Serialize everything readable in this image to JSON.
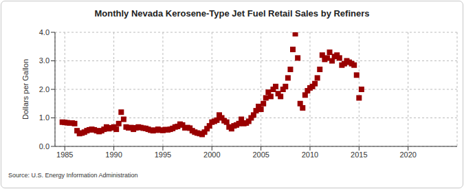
{
  "chart_data": {
    "type": "scatter",
    "title": "Monthly Nevada Kerosene-Type Jet Fuel Retail Sales by Refiners",
    "y_label": "Dollars per Gallon",
    "source": "Source: U.S. Energy Information Administration",
    "series": [
      {
        "name": "Nevada Kerosene-Type Jet Fuel Retail Sales by Refiners",
        "color": "#990000",
        "marker": "square",
        "x": [
          1984.75,
          1985.0,
          1985.25,
          1985.5,
          1985.75,
          1986.0,
          1986.25,
          1986.5,
          1986.75,
          1987.0,
          1987.25,
          1987.5,
          1987.75,
          1988.0,
          1988.25,
          1988.5,
          1988.75,
          1989.0,
          1989.25,
          1989.5,
          1989.75,
          1990.0,
          1990.25,
          1990.5,
          1990.75,
          1991.0,
          1991.25,
          1991.5,
          1991.75,
          1992.0,
          1992.25,
          1992.5,
          1992.75,
          1993.0,
          1993.25,
          1993.5,
          1993.75,
          1994.0,
          1994.25,
          1994.5,
          1994.75,
          1995.0,
          1995.25,
          1995.5,
          1995.75,
          1996.0,
          1996.25,
          1996.5,
          1996.75,
          1997.0,
          1997.25,
          1997.5,
          1997.75,
          1998.0,
          1998.25,
          1998.5,
          1998.75,
          1999.0,
          1999.25,
          1999.5,
          1999.75,
          2000.0,
          2000.25,
          2000.5,
          2000.75,
          2001.0,
          2001.25,
          2001.5,
          2001.75,
          2002.0,
          2002.25,
          2002.5,
          2002.75,
          2003.0,
          2003.25,
          2003.5,
          2003.75,
          2004.0,
          2004.25,
          2004.5,
          2004.75,
          2005.0,
          2005.25,
          2005.5,
          2005.75,
          2006.0,
          2006.25,
          2006.5,
          2006.75,
          2007.0,
          2007.25,
          2007.5,
          2007.75,
          2008.0,
          2008.25,
          2008.5,
          2008.75,
          2009.0,
          2009.25,
          2009.5,
          2009.75,
          2010.0,
          2010.25,
          2010.5,
          2010.75,
          2011.0,
          2011.25,
          2011.5,
          2011.75,
          2012.0,
          2012.25,
          2012.5,
          2012.75,
          2013.0,
          2013.25,
          2013.5,
          2013.75,
          2014.0,
          2014.25,
          2014.5,
          2014.75,
          2015.0,
          2015.25
        ],
        "values": [
          0.85,
          0.84,
          0.83,
          0.82,
          0.82,
          0.8,
          0.55,
          0.45,
          0.47,
          0.5,
          0.55,
          0.58,
          0.6,
          0.58,
          0.55,
          0.52,
          0.55,
          0.6,
          0.68,
          0.62,
          0.65,
          0.68,
          0.6,
          0.8,
          1.2,
          0.95,
          0.68,
          0.65,
          0.66,
          0.6,
          0.65,
          0.68,
          0.66,
          0.64,
          0.63,
          0.6,
          0.57,
          0.55,
          0.57,
          0.6,
          0.57,
          0.56,
          0.59,
          0.58,
          0.6,
          0.63,
          0.68,
          0.7,
          0.78,
          0.75,
          0.65,
          0.66,
          0.64,
          0.55,
          0.5,
          0.47,
          0.45,
          0.42,
          0.5,
          0.62,
          0.72,
          0.85,
          0.88,
          0.92,
          1.1,
          1.0,
          0.9,
          0.85,
          0.68,
          0.62,
          0.72,
          0.75,
          0.8,
          0.95,
          0.8,
          0.82,
          0.88,
          1.0,
          1.1,
          1.25,
          1.4,
          1.3,
          1.5,
          1.7,
          1.9,
          1.75,
          2.0,
          2.1,
          1.85,
          1.75,
          2.0,
          2.1,
          2.4,
          2.7,
          3.4,
          3.95,
          3.1,
          1.5,
          1.35,
          1.8,
          1.95,
          2.05,
          2.1,
          2.2,
          2.4,
          2.7,
          3.2,
          3.05,
          3.1,
          3.3,
          3.0,
          3.15,
          3.2,
          3.1,
          2.85,
          2.9,
          3.0,
          2.95,
          2.9,
          2.85,
          2.5,
          1.7,
          2.0
        ]
      }
    ],
    "xlim": [
      1984,
      2025
    ],
    "xticks": [
      1985,
      1990,
      1995,
      2000,
      2005,
      2010,
      2015,
      2020
    ],
    "ylim": [
      0,
      4
    ],
    "yticks": [
      {
        "value": 0,
        "label": "0.0"
      },
      {
        "value": 1,
        "label": "1.0"
      },
      {
        "value": 2,
        "label": "2.0"
      },
      {
        "value": 3,
        "label": "3.0"
      },
      {
        "value": 4,
        "label": "4.0"
      }
    ],
    "grid": true
  }
}
